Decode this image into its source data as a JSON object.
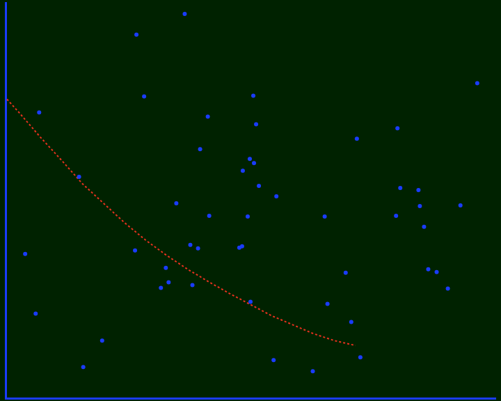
{
  "chart_data": {
    "type": "scatter",
    "xlim": [
      0,
      700
    ],
    "ylim": [
      0,
      570
    ],
    "grid": false,
    "tick_labels": false,
    "series": [
      {
        "type": "scatter",
        "color": "#1a3cff",
        "marker": "circle",
        "x": [
          256,
          187,
          674,
          198,
          354,
          48,
          289,
          358,
          278,
          502,
          560,
          349,
          355,
          339,
          105,
          362,
          244,
          564,
          590,
          650,
          592,
          387,
          291,
          346,
          456,
          558,
          598,
          264,
          275,
          334,
          338,
          28,
          185,
          229,
          604,
          616,
          486,
          233,
          222,
          267,
          632,
          350,
          460,
          43,
          494,
          138,
          507,
          383,
          111,
          439
        ],
        "values": [
          554,
          524,
          454,
          435,
          436,
          412,
          406,
          395,
          359,
          374,
          389,
          345,
          339,
          328,
          319,
          306,
          281,
          303,
          300,
          278,
          277,
          291,
          263,
          262,
          262,
          263,
          247,
          221,
          216,
          217,
          219,
          208,
          213,
          188,
          186,
          182,
          181,
          167,
          159,
          163,
          158,
          139,
          136,
          122,
          110,
          83,
          59,
          55,
          45,
          39
        ]
      },
      {
        "type": "line",
        "color": "#e8321e",
        "line_style": "dashed",
        "x": [
          2,
          20,
          50,
          80,
          110,
          140,
          170,
          200,
          230,
          260,
          290,
          320,
          350,
          380,
          410,
          440,
          470,
          500
        ],
        "values": [
          431,
          411,
          376,
          343,
          309,
          281,
          253,
          228,
          206,
          186,
          168,
          151,
          135,
          119,
          106,
          93,
          83,
          76
        ]
      }
    ]
  }
}
